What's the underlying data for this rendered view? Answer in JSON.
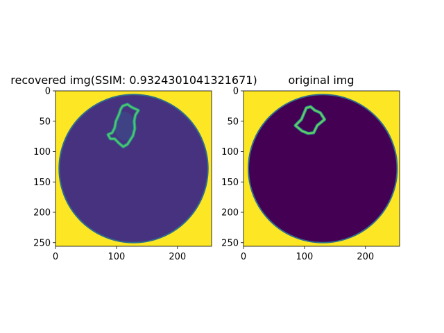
{
  "chart_data": [
    {
      "type": "heatmap",
      "title": "recovered img(SSIM: 0.9324301041321671)",
      "image_size": [
        256,
        256
      ],
      "xlim": [
        0,
        256
      ],
      "ylim": [
        256,
        0
      ],
      "x_ticks": [
        0,
        100,
        200
      ],
      "y_ticks": [
        0,
        50,
        100,
        150,
        200,
        250
      ],
      "colors": {
        "background": "#fde725",
        "disk": "#46327e",
        "rim": "#2f6f8e",
        "outline": "#55c667"
      },
      "disk": {
        "cx": 128,
        "cy": 128,
        "r": 122
      },
      "region_center": [
        113,
        58
      ],
      "region_outline": [
        [
          110,
          25
        ],
        [
          118,
          22
        ],
        [
          125,
          27
        ],
        [
          136,
          32
        ],
        [
          131,
          40
        ],
        [
          129,
          50
        ],
        [
          130,
          62
        ],
        [
          127,
          74
        ],
        [
          118,
          88
        ],
        [
          111,
          92
        ],
        [
          104,
          86
        ],
        [
          97,
          79
        ],
        [
          90,
          79
        ],
        [
          86,
          72
        ],
        [
          93,
          69
        ],
        [
          97,
          61
        ],
        [
          99,
          50
        ],
        [
          104,
          39
        ],
        [
          107,
          30
        ]
      ]
    },
    {
      "type": "heatmap",
      "title": "original img",
      "image_size": [
        256,
        256
      ],
      "xlim": [
        0,
        256
      ],
      "ylim": [
        256,
        0
      ],
      "x_ticks": [
        0,
        100,
        200
      ],
      "y_ticks": [
        0,
        50,
        100,
        150,
        200,
        250
      ],
      "colors": {
        "background": "#fde725",
        "disk": "#440154",
        "rim": "#2f6f8e",
        "outline": "#6ccd5a"
      },
      "disk": {
        "cx": 130,
        "cy": 128,
        "r": 122
      },
      "region_center": [
        108,
        50
      ],
      "region_outline": [
        [
          103,
          28
        ],
        [
          110,
          26
        ],
        [
          117,
          32
        ],
        [
          126,
          36
        ],
        [
          133,
          47
        ],
        [
          121,
          57
        ],
        [
          115,
          69
        ],
        [
          106,
          70
        ],
        [
          96,
          66
        ],
        [
          85,
          57
        ],
        [
          95,
          47
        ]
      ]
    }
  ]
}
